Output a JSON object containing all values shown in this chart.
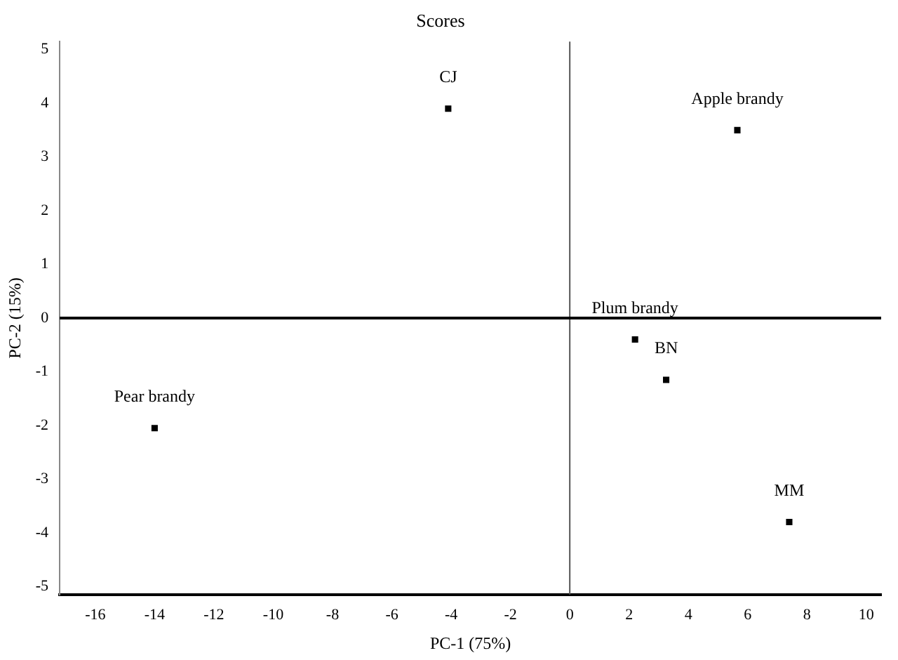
{
  "chart_data": {
    "type": "scatter",
    "title": "Scores",
    "xlabel": "PC-1 (75%)",
    "ylabel": "PC-2 (15%)",
    "x": [
      -4.1,
      5.65,
      2.2,
      3.25,
      -14.0,
      7.4
    ],
    "values": [
      3.9,
      3.5,
      -0.4,
      -1.15,
      -2.05,
      -3.8
    ],
    "color": "#000000",
    "marker": "square",
    "xlim": [
      -17.2,
      10.5
    ],
    "xticks": [
      -16,
      -14,
      -12,
      -10,
      -8,
      -6,
      -4,
      -2,
      0,
      2,
      4,
      6,
      8,
      10
    ],
    "ylim": [
      -5.15,
      5.15
    ],
    "yticks": [
      -5,
      -4,
      -3,
      -2,
      -1,
      0,
      1,
      2,
      3,
      4,
      5
    ],
    "grid": false,
    "legend": false,
    "ref_lines": [
      {
        "axis": "x",
        "value": 0,
        "color": "#555555"
      },
      {
        "axis": "y",
        "value": 0,
        "color": "#000000"
      }
    ],
    "annotations": [
      {
        "text": "CJ",
        "x": -4.1,
        "y": 3.9
      },
      {
        "text": "Apple brandy",
        "x": 5.65,
        "y": 3.5
      },
      {
        "text": "Plum brandy",
        "x": 2.2,
        "y": -0.4
      },
      {
        "text": "BN",
        "x": 3.25,
        "y": -1.15
      },
      {
        "text": "Pear brandy",
        "x": -14.0,
        "y": -2.05
      },
      {
        "text": "MM",
        "x": 7.4,
        "y": -3.8
      }
    ]
  }
}
